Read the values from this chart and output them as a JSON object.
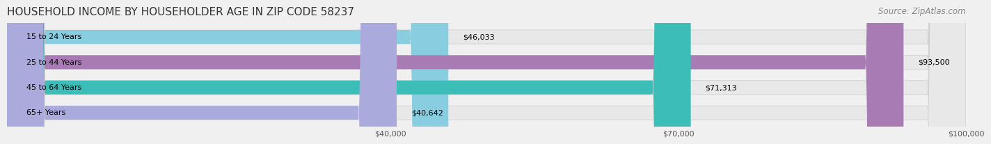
{
  "title": "HOUSEHOLD INCOME BY HOUSEHOLDER AGE IN ZIP CODE 58237",
  "source": "Source: ZipAtlas.com",
  "categories": [
    "15 to 24 Years",
    "25 to 44 Years",
    "45 to 64 Years",
    "65+ Years"
  ],
  "values": [
    46033,
    93500,
    71313,
    40642
  ],
  "bar_colors": [
    "#89CDE0",
    "#A87BB5",
    "#3DBDB8",
    "#AAAADD"
  ],
  "bar_labels": [
    "$46,033",
    "$93,500",
    "$71,313",
    "$40,642"
  ],
  "xlim": [
    0,
    100000
  ],
  "xticks": [
    40000,
    70000,
    100000
  ],
  "xtick_labels": [
    "$40,000",
    "$70,000",
    "$100,000"
  ],
  "background_color": "#f0f0f0",
  "bar_bg_color": "#e8e8e8",
  "title_fontsize": 11,
  "source_fontsize": 8.5
}
